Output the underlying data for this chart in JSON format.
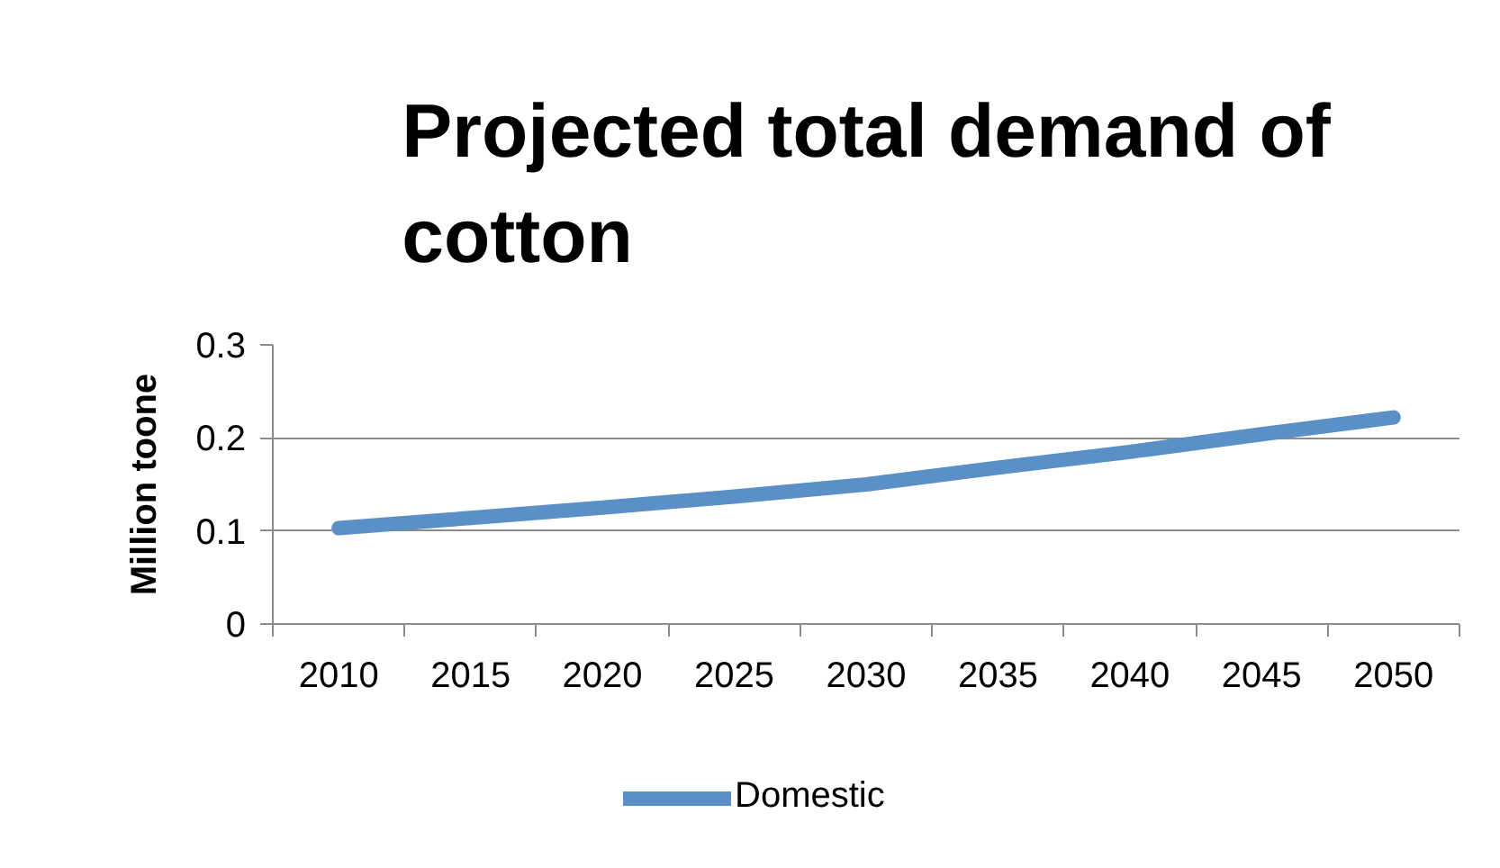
{
  "chart_data": {
    "type": "line",
    "title": "Projected total demand of cotton",
    "ylabel": "Million toone",
    "categories": [
      "2010",
      "2015",
      "2020",
      "2025",
      "2030",
      "2035",
      "2040",
      "2045",
      "2050"
    ],
    "series": [
      {
        "name": "Domestic",
        "color": "#5b8fc7",
        "values": [
          0.103,
          0.114,
          0.125,
          0.137,
          0.15,
          0.168,
          0.185,
          0.204,
          0.222
        ]
      }
    ],
    "ylim": [
      0,
      0.3
    ],
    "yticks": [
      0,
      0.1,
      0.2,
      0.3
    ],
    "grid": "y",
    "legend": "bottom",
    "line_style": "solid"
  }
}
